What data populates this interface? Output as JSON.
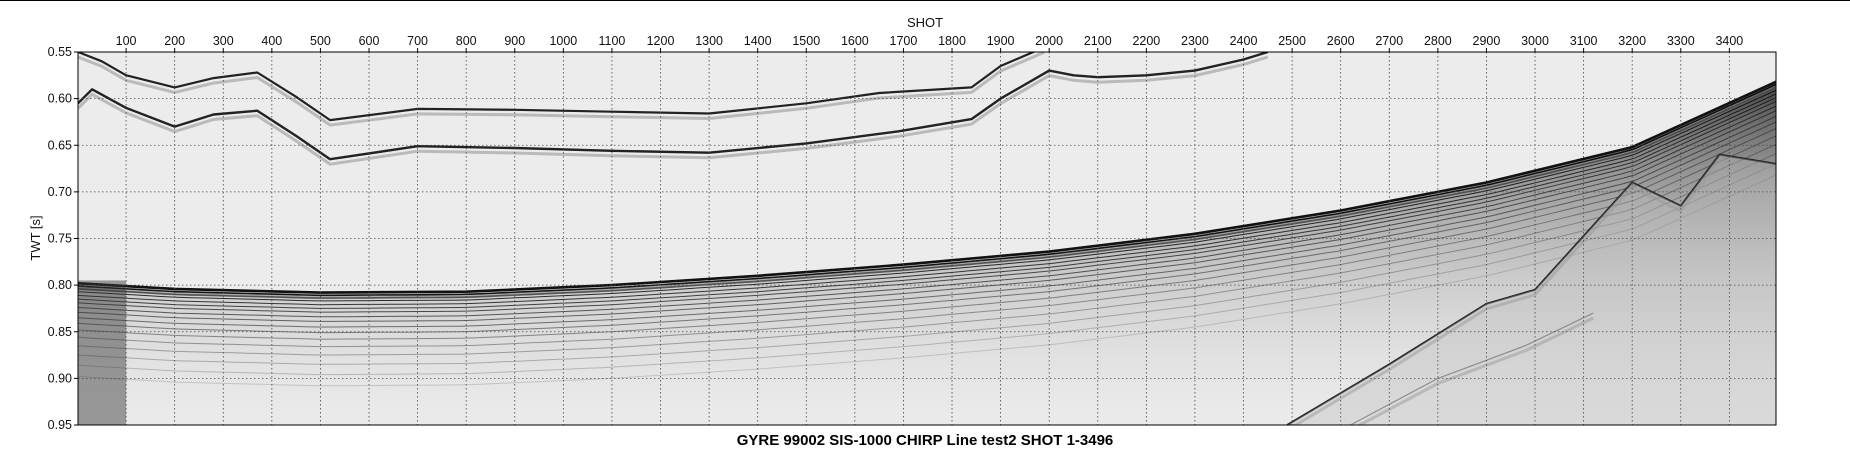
{
  "chart_data": {
    "type": "seismic-section",
    "title": "GYRE 99002 SIS-1000 CHIRP Line test2 SHOT 1-3496",
    "xlabel": "SHOT",
    "ylabel": "TWT [s]",
    "xlim": [
      1,
      3496
    ],
    "ylim": [
      0.55,
      0.95
    ],
    "y_inverted": true,
    "grid": true,
    "grid_style": "dotted",
    "x_ticks": [
      100,
      200,
      300,
      400,
      500,
      600,
      700,
      800,
      900,
      1000,
      1100,
      1200,
      1300,
      1400,
      1500,
      1600,
      1700,
      1800,
      1900,
      2000,
      2100,
      2200,
      2300,
      2400,
      2500,
      2600,
      2700,
      2800,
      2900,
      3000,
      3100,
      3200,
      3300,
      3400
    ],
    "y_ticks": [
      0.55,
      0.6,
      0.65,
      0.7,
      0.75,
      0.8,
      0.85,
      0.9,
      0.95
    ],
    "y_tick_labels": [
      "0.55",
      "0.60",
      "0.65",
      "0.70",
      "0.75",
      "0.80",
      "0.85",
      "0.90",
      "0.95"
    ],
    "colormap": "grayscale",
    "reflectors": [
      {
        "name": "upper-multiple-a",
        "x": [
          1,
          50,
          100,
          200,
          280,
          370,
          450,
          520,
          700,
          900,
          1100,
          1300,
          1500,
          1650,
          1840,
          1900,
          1990
        ],
        "y": [
          0.55,
          0.56,
          0.575,
          0.588,
          0.578,
          0.572,
          0.598,
          0.623,
          0.611,
          0.612,
          0.614,
          0.616,
          0.605,
          0.594,
          0.588,
          0.565,
          0.545
        ]
      },
      {
        "name": "upper-multiple-b",
        "x": [
          1,
          30,
          100,
          200,
          280,
          370,
          450,
          520,
          700,
          900,
          1100,
          1300,
          1500,
          1690,
          1840,
          1900,
          2000,
          2050,
          2100,
          2200,
          2300,
          2400,
          2450
        ],
        "y": [
          0.605,
          0.59,
          0.61,
          0.63,
          0.617,
          0.613,
          0.64,
          0.665,
          0.651,
          0.653,
          0.656,
          0.658,
          0.648,
          0.635,
          0.622,
          0.6,
          0.57,
          0.575,
          0.577,
          0.575,
          0.57,
          0.558,
          0.55
        ]
      },
      {
        "name": "seafloor",
        "x": [
          1,
          200,
          500,
          800,
          1100,
          1400,
          1700,
          2000,
          2300,
          2600,
          2900,
          3200,
          3496
        ],
        "y": [
          0.798,
          0.804,
          0.808,
          0.807,
          0.8,
          0.79,
          0.778,
          0.764,
          0.745,
          0.72,
          0.69,
          0.652,
          0.582
        ]
      },
      {
        "name": "deep-reflector",
        "x": [
          2490,
          2700,
          2900,
          3000,
          3200,
          3300,
          3380,
          3496
        ],
        "y": [
          0.95,
          0.885,
          0.82,
          0.805,
          0.69,
          0.715,
          0.66,
          0.67
        ]
      },
      {
        "name": "faint-deep-reflector",
        "x": [
          2620,
          2800,
          2980,
          3120
        ],
        "y": [
          0.95,
          0.9,
          0.865,
          0.83
        ]
      }
    ]
  }
}
